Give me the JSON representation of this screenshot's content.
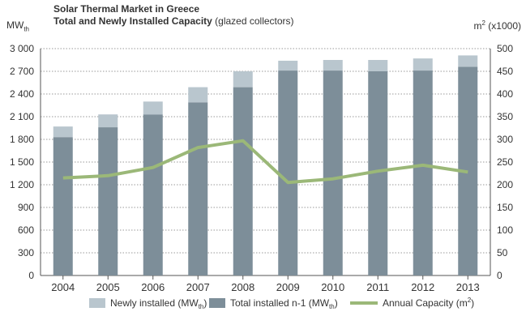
{
  "chart_data": {
    "type": "bar",
    "title_line1": "Solar Thermal Market in Greece",
    "title_line2_bold": "Total and Newly Installed Capacity",
    "title_line2_normal": " (glazed collectors)",
    "ylabel_left": "MW",
    "ylabel_left_sub": "th",
    "ylabel_right": "m",
    "ylabel_right_sup": "2",
    "ylabel_right_suffix": " (x1000)",
    "categories": [
      "2004",
      "2005",
      "2006",
      "2007",
      "2008",
      "2009",
      "2010",
      "2011",
      "2012",
      "2013"
    ],
    "ylim_left": [
      0,
      3000
    ],
    "ylim_right": [
      0,
      500
    ],
    "yticks_left": [
      "0",
      "300",
      "600",
      "900",
      "1 200",
      "1 500",
      "1 800",
      "2 100",
      "2 400",
      "2 700",
      "3 000"
    ],
    "yticks_right": [
      "0",
      "50",
      "100",
      "150",
      "200",
      "250",
      "300",
      "350",
      "400",
      "450",
      "500"
    ],
    "series": [
      {
        "name": "Total installed n-1 (MW",
        "name_sub": "th",
        "name_tail": ")",
        "kind": "bar",
        "color": "#7d8e99",
        "values": [
          1830,
          1960,
          2130,
          2290,
          2490,
          2710,
          2710,
          2700,
          2710,
          2760
        ]
      },
      {
        "name": "Newly installed (MW",
        "name_sub": "th",
        "name_tail": ")",
        "kind": "bar-stack",
        "color": "#b9c6ce",
        "values": [
          140,
          170,
          170,
          200,
          210,
          130,
          140,
          150,
          160,
          150
        ]
      },
      {
        "name": "Annual Capacity (m",
        "name_sup": "2",
        "name_tail": ")",
        "kind": "line",
        "axis": "right",
        "color": "#9bb878",
        "values": [
          215,
          220,
          238,
          282,
          297,
          205,
          213,
          230,
          243,
          228
        ]
      }
    ],
    "grid": true,
    "legend_position": "bottom"
  }
}
